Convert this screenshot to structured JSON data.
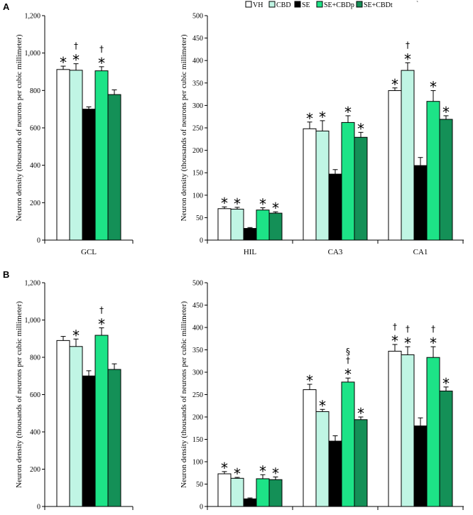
{
  "colors": {
    "VH": "#ffffff",
    "CBD": "#c0f5e4",
    "SE": "#000000",
    "SE+CBDp": "#1de387",
    "SE+CBDt": "#149057"
  },
  "legend": {
    "items": [
      "VH",
      "CBD",
      "SE",
      "SE+CBDp",
      "SE+CBDt"
    ],
    "trailing_mark": "`"
  },
  "ylabel": "Neuron density (thousands of neurons per cubic millimeter)",
  "chart_data": [
    {
      "panel": "A",
      "type": "bar",
      "ylim": [
        0,
        1200
      ],
      "yticks": [
        "0",
        "200",
        "400",
        "600",
        "800",
        "1,000",
        "1,200"
      ],
      "categories": [
        "GCL"
      ],
      "series": [
        {
          "name": "VH",
          "values": [
            912
          ],
          "errors": [
            18
          ],
          "marks": [
            [
              "*"
            ]
          ]
        },
        {
          "name": "CBD",
          "values": [
            908
          ],
          "errors": [
            35
          ],
          "marks": [
            [
              "*",
              "†"
            ]
          ]
        },
        {
          "name": "SE",
          "values": [
            700
          ],
          "errors": [
            12
          ],
          "marks": [
            []
          ]
        },
        {
          "name": "SE+CBDp",
          "values": [
            905
          ],
          "errors": [
            22
          ],
          "marks": [
            [
              "*",
              "†"
            ]
          ]
        },
        {
          "name": "SE+CBDt",
          "values": [
            778
          ],
          "errors": [
            25
          ],
          "marks": [
            []
          ]
        }
      ]
    },
    {
      "panel": "A",
      "type": "bar",
      "ylim": [
        0,
        500
      ],
      "yticks": [
        "0",
        "50",
        "100",
        "150",
        "200",
        "250",
        "300",
        "350",
        "400",
        "450",
        "500"
      ],
      "categories": [
        "HIL",
        "CA3",
        "CA1"
      ],
      "series": [
        {
          "name": "VH",
          "values": [
            70,
            248,
            333
          ],
          "errors": [
            4,
            15,
            6
          ],
          "marks": [
            [
              "*"
            ],
            [
              "*"
            ],
            [
              "*"
            ]
          ]
        },
        {
          "name": "CBD",
          "values": [
            69,
            243,
            378
          ],
          "errors": [
            4,
            23,
            17
          ],
          "marks": [
            [
              "*"
            ],
            [
              "*"
            ],
            [
              "*",
              "†"
            ]
          ]
        },
        {
          "name": "SE",
          "values": [
            26,
            147,
            166
          ],
          "errors": [
            2,
            10,
            18
          ],
          "marks": [
            [],
            [],
            []
          ]
        },
        {
          "name": "SE+CBDp",
          "values": [
            67,
            262,
            309
          ],
          "errors": [
            5,
            15,
            24
          ],
          "marks": [
            [
              "*"
            ],
            [
              "*"
            ],
            [
              "*"
            ]
          ]
        },
        {
          "name": "SE+CBDt",
          "values": [
            60,
            229,
            269
          ],
          "errors": [
            3,
            11,
            8
          ],
          "marks": [
            [
              "*"
            ],
            [
              "*"
            ],
            [
              "*"
            ]
          ]
        }
      ]
    },
    {
      "panel": "B",
      "type": "bar",
      "ylim": [
        0,
        1200
      ],
      "yticks": [
        "0",
        "200",
        "400",
        "600",
        "800",
        "1,000",
        "1,200"
      ],
      "categories": [
        "GCL"
      ],
      "series": [
        {
          "name": "VH",
          "values": [
            890
          ],
          "errors": [
            22
          ],
          "marks": [
            []
          ]
        },
        {
          "name": "CBD",
          "values": [
            858
          ],
          "errors": [
            40
          ],
          "marks": [
            [
              "*"
            ]
          ]
        },
        {
          "name": "SE",
          "values": [
            700
          ],
          "errors": [
            28
          ],
          "marks": [
            []
          ]
        },
        {
          "name": "SE+CBDp",
          "values": [
            918
          ],
          "errors": [
            40
          ],
          "marks": [
            [
              "*",
              "†"
            ]
          ]
        },
        {
          "name": "SE+CBDt",
          "values": [
            735
          ],
          "errors": [
            30
          ],
          "marks": [
            []
          ]
        }
      ]
    },
    {
      "panel": "B",
      "type": "bar",
      "ylim": [
        0,
        500
      ],
      "yticks": [
        "0",
        "50",
        "100",
        "150",
        "200",
        "250",
        "300",
        "350",
        "400",
        "450",
        "500"
      ],
      "categories": [
        "HIL",
        "CA3",
        "CA1"
      ],
      "series": [
        {
          "name": "VH",
          "values": [
            73,
            261,
            347
          ],
          "errors": [
            5,
            12,
            15
          ],
          "marks": [
            [
              "*"
            ],
            [
              "*"
            ],
            [
              "*",
              "†"
            ]
          ]
        },
        {
          "name": "CBD",
          "values": [
            63,
            212,
            339
          ],
          "errors": [
            2,
            5,
            18
          ],
          "marks": [
            [
              "*"
            ],
            [
              "*"
            ],
            [
              "*",
              "†"
            ]
          ]
        },
        {
          "name": "SE",
          "values": [
            17,
            146,
            180
          ],
          "errors": [
            2,
            12,
            18
          ],
          "marks": [
            [],
            [],
            []
          ]
        },
        {
          "name": "SE+CBDp",
          "values": [
            62,
            278,
            333
          ],
          "errors": [
            9,
            9,
            24
          ],
          "marks": [
            [
              "*"
            ],
            [
              "*",
              "†",
              "§"
            ],
            [
              "*",
              "†"
            ]
          ]
        },
        {
          "name": "SE+CBDt",
          "values": [
            60,
            194,
            258
          ],
          "errors": [
            6,
            6,
            9
          ],
          "marks": [
            [
              "*"
            ],
            [
              "*"
            ],
            [
              "*"
            ]
          ]
        }
      ]
    }
  ]
}
